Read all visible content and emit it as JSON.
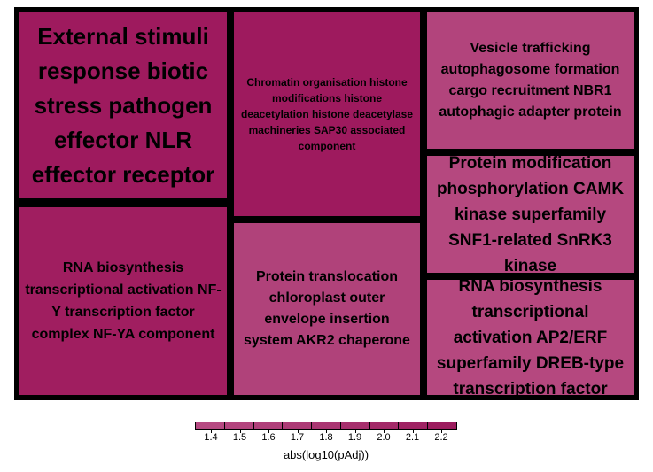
{
  "chart_data": {
    "type": "treemap",
    "tiles": [
      {
        "label": "External stimuli response biotic stress pathogen effector NLR effector receptor",
        "value": 2.2,
        "color": "#9e1a5e"
      },
      {
        "label": "RNA biosynthesis transcriptional activation NF-Y transcription factor complex NF-YA component",
        "value": 2.15,
        "color": "#a01e60"
      },
      {
        "label": "Chromatin organisation histone modifications histone deacetylation histone deacetylase machineries SAP30 associated component",
        "value": 2.2,
        "color": "#9e1a5e"
      },
      {
        "label": "Protein translocation chloroplast outer envelope insertion system AKR2 chaperone",
        "value": 1.6,
        "color": "#b0427a"
      },
      {
        "label": "Vesicle trafficking autophagosome formation cargo recruitment NBR1 autophagic adapter protein",
        "value": 1.55,
        "color": "#b2447c"
      },
      {
        "label": "Protein modification phosphorylation CAMK kinase superfamily SNF1-related SnRK3 kinase",
        "value": 1.45,
        "color": "#b5487f"
      },
      {
        "label": "RNA biosynthesis transcriptional activation AP2/ERF superfamily DREB-type transcription factor",
        "value": 1.45,
        "color": "#b5487f"
      }
    ],
    "legend": {
      "title": "abs(log10(pAdj))",
      "ticks": [
        "1.4",
        "1.5",
        "1.6",
        "1.7",
        "1.8",
        "1.9",
        "2.0",
        "2.1",
        "2.2"
      ],
      "colors": [
        "#b64a82",
        "#b3457e",
        "#b0407a",
        "#ad3b76",
        "#aa3672",
        "#a6306d",
        "#a32a68",
        "#9f2363",
        "#9c1c5e"
      ],
      "range": [
        1.4,
        2.2
      ]
    }
  }
}
